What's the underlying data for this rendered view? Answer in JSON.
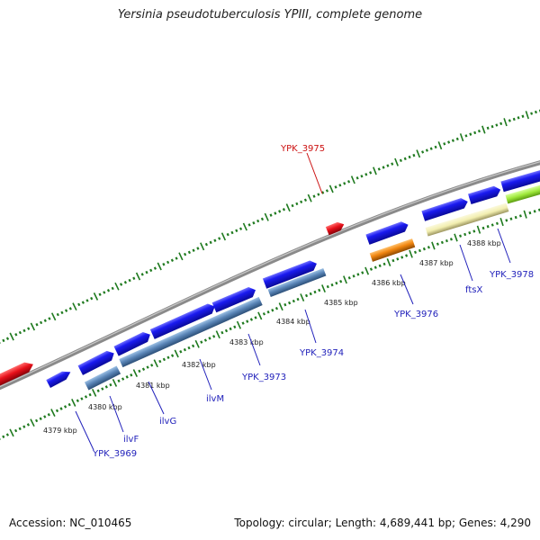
{
  "title": "Yersinia pseudotuberculosis YPIII, complete genome",
  "footer": {
    "accession": "Accession: NC_010465",
    "stats": "Topology: circular; Length: 4,689,441 bp; Genes: 4,290"
  },
  "colors": {
    "forward_gene": "#1515e6",
    "operon_gene": "#5b86b8",
    "reverse_gene": "#e8101a",
    "orange_gene": "#f0850f",
    "pale_gene": "#f2eeb0",
    "green_gene": "#9ee83a",
    "label_blue": "#2222bb",
    "label_red": "#cc1111",
    "tick_green": "#1f7a1f",
    "backbone": "#8a8a8a"
  },
  "kbp_labels": [
    "4379 kbp",
    "4380 kbp",
    "4381 kbp",
    "4382 kbp",
    "4383 kbp",
    "4384 kbp",
    "4385 kbp",
    "4386 kbp",
    "4387 kbp",
    "4388 kbp"
  ],
  "gene_labels": [
    {
      "name": "YPK_3969",
      "color": "blue"
    },
    {
      "name": "ilvF",
      "color": "blue"
    },
    {
      "name": "ilvG",
      "color": "blue"
    },
    {
      "name": "ilvM",
      "color": "blue"
    },
    {
      "name": "YPK_3973",
      "color": "blue"
    },
    {
      "name": "YPK_3974",
      "color": "blue"
    },
    {
      "name": "YPK_3975",
      "color": "red"
    },
    {
      "name": "YPK_3976",
      "color": "blue"
    },
    {
      "name": "ftsX",
      "color": "blue"
    },
    {
      "name": "YPK_3978",
      "color": "blue"
    }
  ]
}
